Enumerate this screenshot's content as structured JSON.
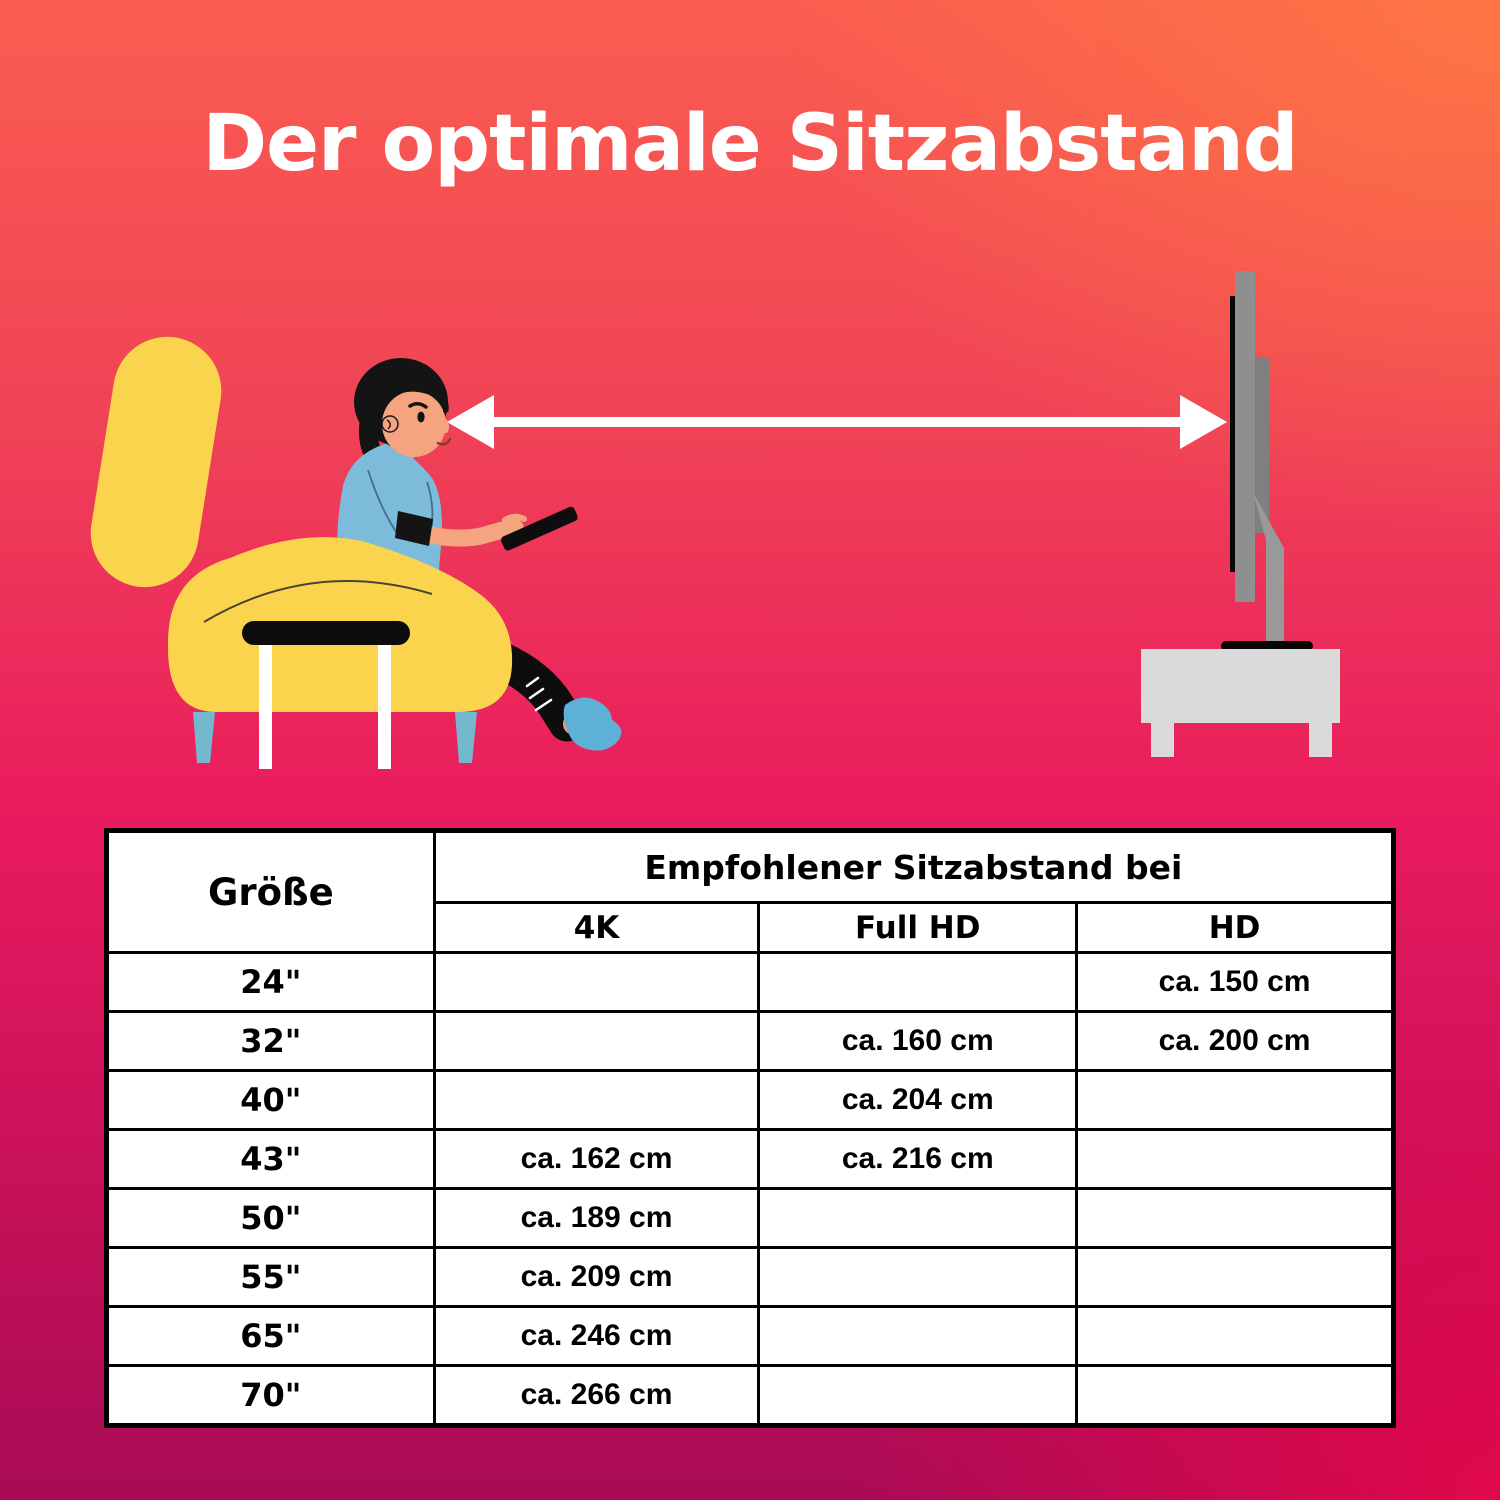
{
  "title": "Der optimale Sitzabstand",
  "colors": {
    "chair_yellow": "#fbd44d",
    "chair_leg_blue": "#74b8d0",
    "shirt_blue": "#7cbbd9",
    "skin": "#f4a47f",
    "hair_black": "#141414",
    "pants_black": "#0d0d0d",
    "sock_blue": "#5fb0d6",
    "tray_black": "#0c0c0c",
    "tray_leg_white": "#ffffff",
    "arrow_white": "#ffffff",
    "tv_panel_gray": "#8f8f8f",
    "tv_back_gray": "#7f7f7f",
    "tv_stand_gray": "#999999",
    "tv_black": "#060606",
    "cabinet_gray": "#dadada",
    "table_bg": "#ffffff",
    "table_border": "#000000",
    "title_white": "#ffffff"
  },
  "table": {
    "col1_header": "Größe",
    "group_header": "Empfohlener Sitzabstand bei",
    "sub_headers": [
      "4K",
      "Full HD",
      "HD"
    ],
    "rows": [
      {
        "size": "24\"",
        "k4": "",
        "full_hd": "",
        "hd": "ca. 150 cm"
      },
      {
        "size": "32\"",
        "k4": "",
        "full_hd": "ca. 160 cm",
        "hd": "ca. 200 cm"
      },
      {
        "size": "40\"",
        "k4": "",
        "full_hd": "ca. 204 cm",
        "hd": ""
      },
      {
        "size": "43\"",
        "k4": "ca. 162 cm",
        "full_hd": "ca. 216 cm",
        "hd": ""
      },
      {
        "size": "50\"",
        "k4": "ca. 189 cm",
        "full_hd": "",
        "hd": ""
      },
      {
        "size": "55\"",
        "k4": "ca. 209 cm",
        "full_hd": "",
        "hd": ""
      },
      {
        "size": "65\"",
        "k4": "ca. 246 cm",
        "full_hd": "",
        "hd": ""
      },
      {
        "size": "70\"",
        "k4": "ca. 266 cm",
        "full_hd": "",
        "hd": ""
      }
    ]
  }
}
